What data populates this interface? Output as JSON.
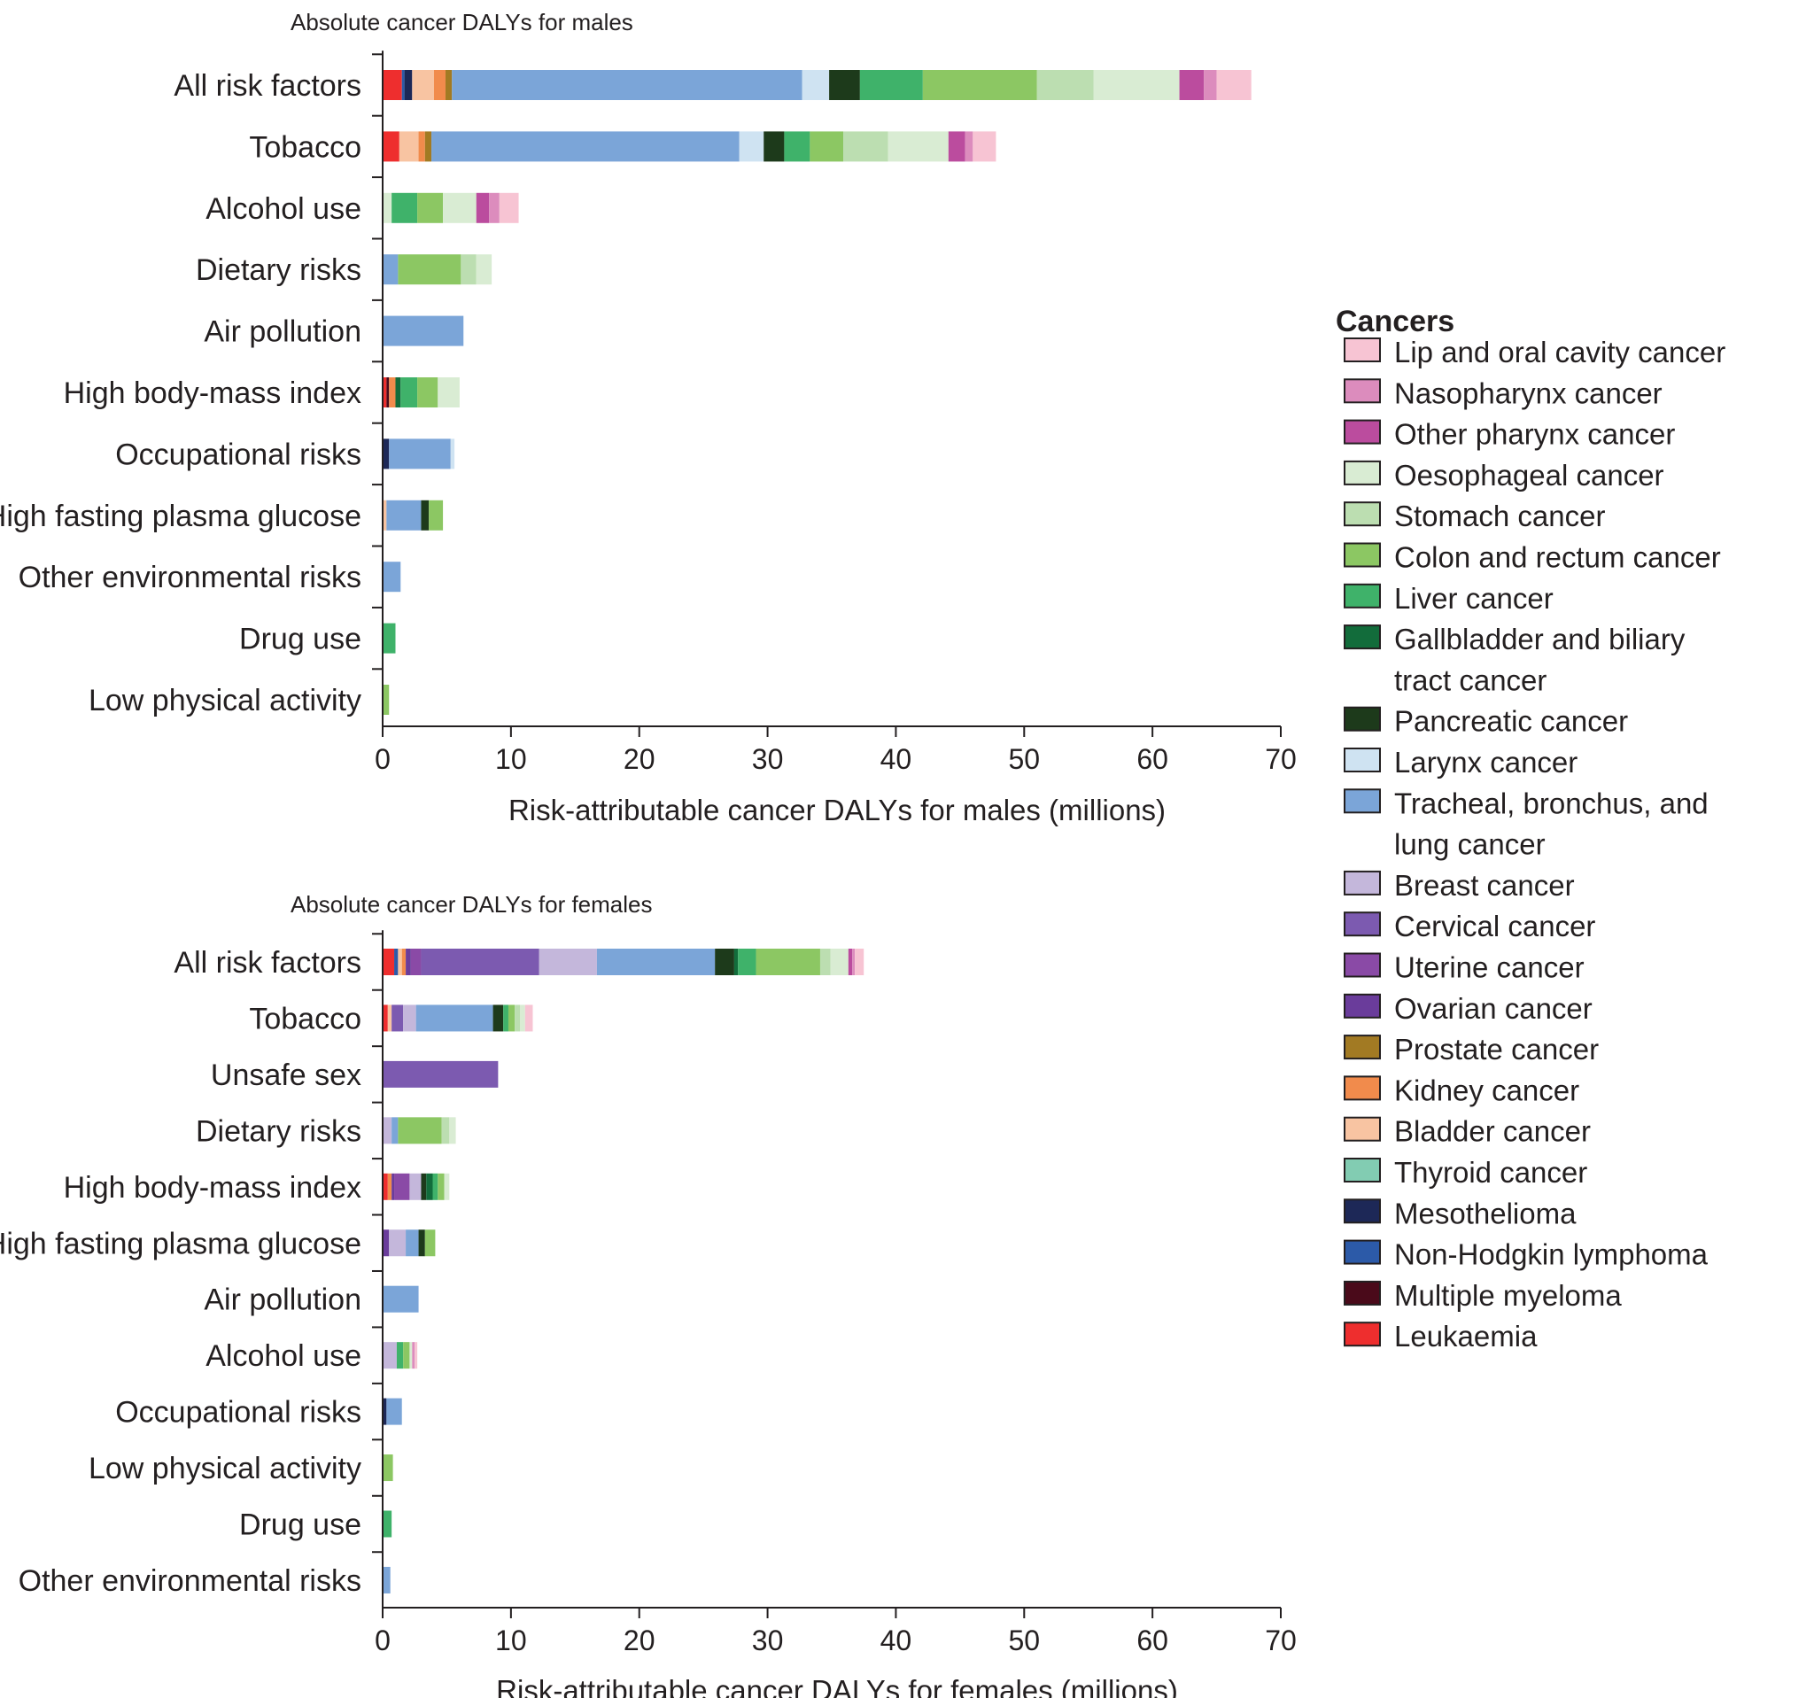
{
  "legend": {
    "title": "Cancers",
    "items": [
      {
        "key": "lip",
        "label": "Lip and oral cavity cancer",
        "lines": [
          "Lip and oral cavity cancer"
        ],
        "color": "#f7c4d3"
      },
      {
        "key": "naso",
        "label": "Nasopharynx cancer",
        "lines": [
          "Nasopharynx cancer"
        ],
        "color": "#dc8cbd"
      },
      {
        "key": "pharynx",
        "label": "Other pharynx cancer",
        "lines": [
          "Other pharynx cancer"
        ],
        "color": "#bb4c9e"
      },
      {
        "key": "oeso",
        "label": "Oesophageal cancer",
        "lines": [
          "Oesophageal cancer"
        ],
        "color": "#d9ecd3"
      },
      {
        "key": "stomach",
        "label": "Stomach cancer",
        "lines": [
          "Stomach cancer"
        ],
        "color": "#bcdeb1"
      },
      {
        "key": "colon",
        "label": "Colon and rectum cancer",
        "lines": [
          "Colon and rectum cancer"
        ],
        "color": "#8cc763"
      },
      {
        "key": "liver",
        "label": "Liver cancer",
        "lines": [
          "Liver cancer"
        ],
        "color": "#3fb26a"
      },
      {
        "key": "gall",
        "label": "Gallbladder and biliary tract cancer",
        "lines": [
          "Gallbladder and biliary",
          "tract cancer"
        ],
        "color": "#126c3b"
      },
      {
        "key": "pancreas",
        "label": "Pancreatic cancer",
        "lines": [
          "Pancreatic cancer"
        ],
        "color": "#1d3a1b"
      },
      {
        "key": "larynx",
        "label": "Larynx cancer",
        "lines": [
          "Larynx cancer"
        ],
        "color": "#cfe3f2"
      },
      {
        "key": "lung",
        "label": "Tracheal, bronchus, and lung cancer",
        "lines": [
          "Tracheal, bronchus, and",
          "lung cancer"
        ],
        "color": "#7ba5d8"
      },
      {
        "key": "breast",
        "label": "Breast cancer",
        "lines": [
          "Breast cancer"
        ],
        "color": "#c4b7db"
      },
      {
        "key": "cervical",
        "label": "Cervical cancer",
        "lines": [
          "Cervical cancer"
        ],
        "color": "#7c5ab0"
      },
      {
        "key": "uterine",
        "label": "Uterine cancer",
        "lines": [
          "Uterine cancer"
        ],
        "color": "#8a4aa6"
      },
      {
        "key": "ovarian",
        "label": "Ovarian cancer",
        "lines": [
          "Ovarian cancer"
        ],
        "color": "#6a3c9b"
      },
      {
        "key": "prostate",
        "label": "Prostate cancer",
        "lines": [
          "Prostate cancer"
        ],
        "color": "#a27a23"
      },
      {
        "key": "kidney",
        "label": "Kidney cancer",
        "lines": [
          "Kidney cancer"
        ],
        "color": "#f18b4c"
      },
      {
        "key": "bladder",
        "label": "Bladder cancer",
        "lines": [
          "Bladder cancer"
        ],
        "color": "#f8c4a2"
      },
      {
        "key": "thyroid",
        "label": "Thyroid cancer",
        "lines": [
          "Thyroid cancer"
        ],
        "color": "#82ccb2"
      },
      {
        "key": "meso",
        "label": "Mesothelioma",
        "lines": [
          "Mesothelioma"
        ],
        "color": "#1d2857"
      },
      {
        "key": "nhl",
        "label": "Non-Hodgkin lymphoma",
        "lines": [
          "Non-Hodgkin lymphoma"
        ],
        "color": "#2c5aa8"
      },
      {
        "key": "myeloma",
        "label": "Multiple myeloma",
        "lines": [
          "Multiple myeloma"
        ],
        "color": "#4a0a1a"
      },
      {
        "key": "leuk",
        "label": "Leukaemia",
        "lines": [
          "Leukaemia"
        ],
        "color": "#ee2e2e"
      }
    ]
  },
  "chart_data": [
    {
      "type": "bar",
      "orientation": "horizontal",
      "stacked": true,
      "title": "Absolute cancer DALYs for males",
      "xlabel": "Risk-attributable cancer DALYs for males (millions)",
      "xlim": [
        0,
        70
      ],
      "xticks": [
        0,
        10,
        20,
        30,
        40,
        50,
        60,
        70
      ],
      "categories": [
        "All risk factors",
        "Tobacco",
        "Alcohol use",
        "Dietary risks",
        "Air pollution",
        "High body-mass index",
        "Occupational risks",
        "High fasting plasma glucose",
        "Other environmental risks",
        "Drug use",
        "Low physical activity"
      ],
      "bars": [
        {
          "category": "All risk factors",
          "segments": [
            {
              "cancer": "leuk",
              "value": 1.5
            },
            {
              "cancer": "nhl",
              "value": 0.2
            },
            {
              "cancer": "meso",
              "value": 0.6
            },
            {
              "cancer": "bladder",
              "value": 1.7
            },
            {
              "cancer": "kidney",
              "value": 0.9
            },
            {
              "cancer": "prostate",
              "value": 0.5
            },
            {
              "cancer": "lung",
              "value": 27.3
            },
            {
              "cancer": "larynx",
              "value": 2.1
            },
            {
              "cancer": "pancreas",
              "value": 2.4
            },
            {
              "cancer": "liver",
              "value": 4.9
            },
            {
              "cancer": "colon",
              "value": 8.9
            },
            {
              "cancer": "stomach",
              "value": 4.4
            },
            {
              "cancer": "oeso",
              "value": 6.7
            },
            {
              "cancer": "pharynx",
              "value": 1.9
            },
            {
              "cancer": "naso",
              "value": 1.0
            },
            {
              "cancer": "lip",
              "value": 2.7
            }
          ]
        },
        {
          "category": "Tobacco",
          "segments": [
            {
              "cancer": "leuk",
              "value": 1.3
            },
            {
              "cancer": "bladder",
              "value": 1.5
            },
            {
              "cancer": "kidney",
              "value": 0.5
            },
            {
              "cancer": "prostate",
              "value": 0.5
            },
            {
              "cancer": "lung",
              "value": 24.0
            },
            {
              "cancer": "larynx",
              "value": 1.9
            },
            {
              "cancer": "pancreas",
              "value": 1.6
            },
            {
              "cancer": "liver",
              "value": 2.0
            },
            {
              "cancer": "colon",
              "value": 2.6
            },
            {
              "cancer": "stomach",
              "value": 3.5
            },
            {
              "cancer": "oeso",
              "value": 4.7
            },
            {
              "cancer": "pharynx",
              "value": 1.3
            },
            {
              "cancer": "naso",
              "value": 0.6
            },
            {
              "cancer": "lip",
              "value": 1.8
            }
          ]
        },
        {
          "category": "Alcohol use",
          "segments": [
            {
              "cancer": "oeso",
              "value": 0.7
            },
            {
              "cancer": "liver",
              "value": 2.0
            },
            {
              "cancer": "colon",
              "value": 2.0
            },
            {
              "cancer": "oeso",
              "value": 2.6
            },
            {
              "cancer": "pharynx",
              "value": 1.0
            },
            {
              "cancer": "naso",
              "value": 0.8
            },
            {
              "cancer": "lip",
              "value": 1.5
            }
          ]
        },
        {
          "category": "Dietary risks",
          "segments": [
            {
              "cancer": "lung",
              "value": 1.2
            },
            {
              "cancer": "colon",
              "value": 4.9
            },
            {
              "cancer": "stomach",
              "value": 1.2
            },
            {
              "cancer": "oeso",
              "value": 1.2
            }
          ]
        },
        {
          "category": "Air pollution",
          "segments": [
            {
              "cancer": "lung",
              "value": 6.3
            }
          ]
        },
        {
          "category": "High body-mass index",
          "segments": [
            {
              "cancer": "leuk",
              "value": 0.3
            },
            {
              "cancer": "myeloma",
              "value": 0.2
            },
            {
              "cancer": "kidney",
              "value": 0.5
            },
            {
              "cancer": "gall",
              "value": 0.4
            },
            {
              "cancer": "liver",
              "value": 1.3
            },
            {
              "cancer": "colon",
              "value": 1.6
            },
            {
              "cancer": "oeso",
              "value": 1.7
            }
          ]
        },
        {
          "category": "Occupational risks",
          "segments": [
            {
              "cancer": "meso",
              "value": 0.5
            },
            {
              "cancer": "lung",
              "value": 4.8
            },
            {
              "cancer": "larynx",
              "value": 0.3
            }
          ]
        },
        {
          "category": "High fasting plasma glucose",
          "segments": [
            {
              "cancer": "bladder",
              "value": 0.3
            },
            {
              "cancer": "lung",
              "value": 2.7
            },
            {
              "cancer": "pancreas",
              "value": 0.6
            },
            {
              "cancer": "colon",
              "value": 1.1
            }
          ]
        },
        {
          "category": "Other environmental risks",
          "segments": [
            {
              "cancer": "lung",
              "value": 1.4
            }
          ]
        },
        {
          "category": "Drug use",
          "segments": [
            {
              "cancer": "liver",
              "value": 1.0
            }
          ]
        },
        {
          "category": "Low physical activity",
          "segments": [
            {
              "cancer": "colon",
              "value": 0.5
            }
          ]
        }
      ]
    },
    {
      "type": "bar",
      "orientation": "horizontal",
      "stacked": true,
      "title": "Absolute cancer DALYs for females",
      "xlabel": "Risk-attributable cancer DALYs for females (millions)",
      "xlim": [
        0,
        70
      ],
      "xticks": [
        0,
        10,
        20,
        30,
        40,
        50,
        60,
        70
      ],
      "categories": [
        "All risk factors",
        "Tobacco",
        "Unsafe sex",
        "Dietary risks",
        "High body-mass index",
        "High fasting plasma glucose",
        "Air pollution",
        "Alcohol use",
        "Occupational risks",
        "Low physical activity",
        "Drug use",
        "Other environmental risks"
      ],
      "bars": [
        {
          "category": "All risk factors",
          "segments": [
            {
              "cancer": "leuk",
              "value": 0.9
            },
            {
              "cancer": "nhl",
              "value": 0.3
            },
            {
              "cancer": "bladder",
              "value": 0.3
            },
            {
              "cancer": "kidney",
              "value": 0.3
            },
            {
              "cancer": "ovarian",
              "value": 0.4
            },
            {
              "cancer": "uterine",
              "value": 0.8
            },
            {
              "cancer": "cervical",
              "value": 9.2
            },
            {
              "cancer": "breast",
              "value": 4.5
            },
            {
              "cancer": "lung",
              "value": 9.2
            },
            {
              "cancer": "pancreas",
              "value": 1.5
            },
            {
              "cancer": "gall",
              "value": 0.3
            },
            {
              "cancer": "liver",
              "value": 1.4
            },
            {
              "cancer": "colon",
              "value": 5.0
            },
            {
              "cancer": "stomach",
              "value": 0.8
            },
            {
              "cancer": "oeso",
              "value": 1.4
            },
            {
              "cancer": "pharynx",
              "value": 0.3
            },
            {
              "cancer": "naso",
              "value": 0.2
            },
            {
              "cancer": "lip",
              "value": 0.7
            }
          ]
        },
        {
          "category": "Tobacco",
          "segments": [
            {
              "cancer": "leuk",
              "value": 0.4
            },
            {
              "cancer": "bladder",
              "value": 0.3
            },
            {
              "cancer": "cervical",
              "value": 0.9
            },
            {
              "cancer": "breast",
              "value": 1.0
            },
            {
              "cancer": "lung",
              "value": 6.0
            },
            {
              "cancer": "pancreas",
              "value": 0.8
            },
            {
              "cancer": "liver",
              "value": 0.4
            },
            {
              "cancer": "colon",
              "value": 0.5
            },
            {
              "cancer": "stomach",
              "value": 0.4
            },
            {
              "cancer": "oeso",
              "value": 0.4
            },
            {
              "cancer": "lip",
              "value": 0.6
            }
          ]
        },
        {
          "category": "Unsafe sex",
          "segments": [
            {
              "cancer": "cervical",
              "value": 9.0
            }
          ]
        },
        {
          "category": "Dietary risks",
          "segments": [
            {
              "cancer": "breast",
              "value": 0.7
            },
            {
              "cancer": "lung",
              "value": 0.5
            },
            {
              "cancer": "colon",
              "value": 3.4
            },
            {
              "cancer": "stomach",
              "value": 0.6
            },
            {
              "cancer": "oeso",
              "value": 0.5
            }
          ]
        },
        {
          "category": "High body-mass index",
          "segments": [
            {
              "cancer": "leuk",
              "value": 0.4
            },
            {
              "cancer": "kidney",
              "value": 0.3
            },
            {
              "cancer": "ovarian",
              "value": 0.2
            },
            {
              "cancer": "uterine",
              "value": 1.2
            },
            {
              "cancer": "breast",
              "value": 0.9
            },
            {
              "cancer": "pancreas",
              "value": 0.4
            },
            {
              "cancer": "gall",
              "value": 0.5
            },
            {
              "cancer": "liver",
              "value": 0.4
            },
            {
              "cancer": "colon",
              "value": 0.5
            },
            {
              "cancer": "oeso",
              "value": 0.4
            }
          ]
        },
        {
          "category": "High fasting plasma glucose",
          "segments": [
            {
              "cancer": "ovarian",
              "value": 0.5
            },
            {
              "cancer": "breast",
              "value": 1.3
            },
            {
              "cancer": "lung",
              "value": 1.0
            },
            {
              "cancer": "pancreas",
              "value": 0.5
            },
            {
              "cancer": "colon",
              "value": 0.8
            }
          ]
        },
        {
          "category": "Air pollution",
          "segments": [
            {
              "cancer": "lung",
              "value": 2.8
            }
          ]
        },
        {
          "category": "Alcohol use",
          "segments": [
            {
              "cancer": "breast",
              "value": 1.1
            },
            {
              "cancer": "liver",
              "value": 0.5
            },
            {
              "cancer": "colon",
              "value": 0.5
            },
            {
              "cancer": "oeso",
              "value": 0.2
            },
            {
              "cancer": "naso",
              "value": 0.2
            },
            {
              "cancer": "lip",
              "value": 0.2
            }
          ]
        },
        {
          "category": "Occupational risks",
          "segments": [
            {
              "cancer": "meso",
              "value": 0.3
            },
            {
              "cancer": "lung",
              "value": 1.2
            }
          ]
        },
        {
          "category": "Low physical activity",
          "segments": [
            {
              "cancer": "colon",
              "value": 0.8
            }
          ]
        },
        {
          "category": "Drug use",
          "segments": [
            {
              "cancer": "liver",
              "value": 0.7
            }
          ]
        },
        {
          "category": "Other environmental risks",
          "segments": [
            {
              "cancer": "lung",
              "value": 0.6
            }
          ]
        }
      ]
    }
  ]
}
